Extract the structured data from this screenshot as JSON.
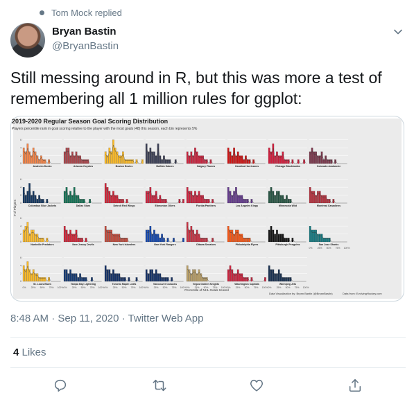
{
  "social_context": {
    "text": "Tom Mock replied"
  },
  "author": {
    "name": "Bryan Bastin",
    "handle": "@BryanBastin"
  },
  "tweet": {
    "text": "Still messing around in R, but this was more a test of remembering all 1 million rules for ggplot:"
  },
  "chart_data": {
    "type": "bar",
    "title": "2019-2020 Regular Season Goal Scoring Distribution",
    "subtitle": "Players percentile rank in goal scoring relative to the player with the most goals (48) this season, each bin represents 5%",
    "xlabel": "Percentile of NHL Goals Scored",
    "ylabel": "# of Players",
    "x_ticks": [
      "0%",
      "25%",
      "50%",
      "75%",
      "100%"
    ],
    "y_ticks": [
      "0",
      "2",
      "4",
      "6"
    ],
    "ylim": [
      0,
      7
    ],
    "caption_left": "Data Visualization by: Bryan Bastin (@BryanBastin)",
    "caption_right": "Data from: EvolvingHockey.com",
    "panels": [
      {
        "team": "Anaheim Ducks",
        "color": "#f47a38",
        "values": [
          4,
          3,
          5,
          3,
          2,
          4,
          3,
          2,
          1,
          2,
          1,
          1,
          0,
          1,
          0,
          0,
          0,
          0,
          0,
          0
        ]
      },
      {
        "team": "Arizona Coyotes",
        "color": "#a4343a",
        "values": [
          3,
          4,
          4,
          2,
          3,
          2,
          3,
          2,
          2,
          1,
          1,
          1,
          1,
          0,
          0,
          0,
          0,
          0,
          0,
          0
        ]
      },
      {
        "team": "Boston Bruins",
        "color": "#fcb514",
        "values": [
          3,
          2,
          4,
          3,
          6,
          4,
          3,
          2,
          2,
          3,
          1,
          1,
          1,
          1,
          1,
          0,
          1,
          0,
          0,
          1
        ]
      },
      {
        "team": "Buffalo Sabres",
        "color": "#2b2f48",
        "values": [
          5,
          3,
          4,
          3,
          3,
          2,
          5,
          2,
          1,
          2,
          1,
          1,
          1,
          0,
          0,
          1,
          0,
          0,
          0,
          0
        ]
      },
      {
        "team": "Calgary Flames",
        "color": "#c8102e",
        "values": [
          3,
          2,
          3,
          2,
          4,
          3,
          2,
          2,
          2,
          1,
          1,
          0,
          1,
          0,
          0,
          0,
          0,
          0,
          0,
          0
        ]
      },
      {
        "team": "Carolina Hurricanes",
        "color": "#cc0000",
        "values": [
          4,
          3,
          2,
          4,
          2,
          3,
          2,
          2,
          1,
          2,
          1,
          1,
          0,
          1,
          0,
          0,
          0,
          0,
          0,
          0
        ]
      },
      {
        "team": "Chicago Blackhawks",
        "color": "#cf0a2c",
        "values": [
          4,
          3,
          5,
          2,
          3,
          2,
          2,
          3,
          1,
          1,
          1,
          0,
          1,
          0,
          0,
          1,
          0,
          0,
          1,
          0
        ]
      },
      {
        "team": "Colorado Avalanche",
        "color": "#6f263d",
        "values": [
          3,
          4,
          3,
          3,
          2,
          2,
          3,
          1,
          2,
          1,
          1,
          1,
          0,
          1,
          0,
          0,
          0,
          0,
          0,
          0
        ]
      },
      {
        "team": "Columbus Blue Jackets",
        "color": "#002654",
        "values": [
          4,
          2,
          3,
          5,
          2,
          3,
          2,
          1,
          2,
          1,
          1,
          0,
          1,
          0,
          0,
          0,
          0,
          0,
          0,
          0
        ]
      },
      {
        "team": "Dallas Stars",
        "color": "#006847",
        "values": [
          3,
          4,
          2,
          3,
          2,
          4,
          2,
          2,
          1,
          1,
          1,
          0,
          0,
          1,
          0,
          0,
          0,
          0,
          0,
          0
        ]
      },
      {
        "team": "Detroit Red Wings",
        "color": "#ce1126",
        "values": [
          5,
          4,
          3,
          2,
          3,
          2,
          2,
          1,
          1,
          1,
          0,
          1,
          0,
          0,
          0,
          0,
          0,
          0,
          0,
          0
        ]
      },
      {
        "team": "Edmonton Oilers",
        "color": "#c8102e",
        "values": [
          3,
          3,
          4,
          2,
          2,
          3,
          1,
          2,
          1,
          1,
          1,
          0,
          0,
          0,
          0,
          0,
          0,
          1,
          0,
          1
        ]
      },
      {
        "team": "Florida Panthers",
        "color": "#c8102e",
        "values": [
          4,
          3,
          3,
          2,
          3,
          2,
          3,
          2,
          2,
          1,
          1,
          1,
          0,
          1,
          0,
          0,
          0,
          0,
          0,
          0
        ]
      },
      {
        "team": "Los Angeles Kings",
        "color": "#572a84",
        "values": [
          4,
          3,
          2,
          3,
          4,
          2,
          2,
          2,
          1,
          1,
          1,
          0,
          1,
          0,
          0,
          0,
          0,
          0,
          0,
          0
        ]
      },
      {
        "team": "Minnesota Wild",
        "color": "#154734",
        "values": [
          3,
          4,
          3,
          2,
          3,
          3,
          2,
          2,
          1,
          2,
          1,
          1,
          0,
          0,
          0,
          0,
          0,
          0,
          0,
          0
        ]
      },
      {
        "team": "Montreal Canadiens",
        "color": "#af1e2d",
        "values": [
          4,
          3,
          3,
          2,
          3,
          3,
          2,
          2,
          2,
          1,
          1,
          0,
          1,
          0,
          0,
          0,
          0,
          0,
          0,
          0
        ]
      },
      {
        "team": "Nashville Predators",
        "color": "#ffb81c",
        "values": [
          3,
          4,
          5,
          2,
          3,
          3,
          2,
          2,
          1,
          1,
          1,
          0,
          1,
          0,
          0,
          0,
          0,
          0,
          0,
          0
        ]
      },
      {
        "team": "New Jersey Devils",
        "color": "#ce1126",
        "values": [
          4,
          3,
          2,
          3,
          2,
          2,
          3,
          1,
          1,
          1,
          0,
          1,
          0,
          0,
          0,
          0,
          0,
          0,
          0,
          0
        ]
      },
      {
        "team": "New York Islanders",
        "color": "#bf3a2b",
        "values": [
          4,
          3,
          3,
          3,
          2,
          2,
          2,
          2,
          1,
          1,
          1,
          1,
          0,
          0,
          0,
          0,
          0,
          0,
          0,
          0
        ]
      },
      {
        "team": "New York Rangers",
        "color": "#0038a8",
        "values": [
          3,
          3,
          4,
          2,
          3,
          2,
          2,
          1,
          2,
          1,
          0,
          1,
          0,
          0,
          1,
          0,
          0,
          0,
          0,
          1
        ]
      },
      {
        "team": "Ottawa Senators",
        "color": "#c52032",
        "values": [
          5,
          3,
          4,
          3,
          2,
          3,
          2,
          1,
          1,
          1,
          1,
          0,
          0,
          1,
          0,
          0,
          0,
          0,
          0,
          0
        ]
      },
      {
        "team": "Philadelphia Flyers",
        "color": "#f74902",
        "values": [
          4,
          3,
          3,
          2,
          3,
          3,
          2,
          2,
          1,
          1,
          1,
          1,
          0,
          0,
          0,
          0,
          0,
          0,
          0,
          0
        ]
      },
      {
        "team": "Pittsburgh Penguins",
        "color": "#000000",
        "values": [
          3,
          4,
          3,
          2,
          3,
          2,
          2,
          2,
          1,
          1,
          1,
          0,
          1,
          0,
          0,
          0,
          0,
          0,
          0,
          0
        ]
      },
      {
        "team": "San Jose Sharks",
        "color": "#006d75",
        "values": [
          4,
          3,
          3,
          3,
          2,
          2,
          2,
          1,
          1,
          1,
          1,
          0,
          0,
          0,
          0,
          0,
          0,
          0,
          0,
          0
        ]
      },
      {
        "team": "St. Louis Blues",
        "color": "#fcb514",
        "values": [
          4,
          3,
          5,
          3,
          2,
          3,
          2,
          2,
          1,
          1,
          1,
          1,
          0,
          1,
          0,
          0,
          0,
          0,
          0,
          0
        ]
      },
      {
        "team": "Tampa Bay Lightning",
        "color": "#002868",
        "values": [
          3,
          3,
          2,
          3,
          2,
          2,
          2,
          1,
          2,
          1,
          1,
          1,
          0,
          0,
          1,
          0,
          0,
          0,
          0,
          0
        ]
      },
      {
        "team": "Toronto Maple Leafs",
        "color": "#00205b",
        "values": [
          4,
          3,
          3,
          2,
          3,
          2,
          2,
          2,
          1,
          1,
          1,
          0,
          1,
          0,
          0,
          0,
          1,
          0,
          0,
          0
        ]
      },
      {
        "team": "Vancouver Canucks",
        "color": "#00205b",
        "values": [
          3,
          2,
          3,
          3,
          2,
          3,
          2,
          2,
          1,
          1,
          1,
          1,
          0,
          1,
          0,
          0,
          0,
          0,
          0,
          0
        ]
      },
      {
        "team": "Vegas Golden Knights",
        "color": "#b4975a",
        "values": [
          4,
          3,
          2,
          3,
          3,
          2,
          3,
          2,
          1,
          1,
          1,
          0,
          0,
          0,
          0,
          0,
          0,
          0,
          0,
          0
        ]
      },
      {
        "team": "Washington Capitals",
        "color": "#c8102e",
        "values": [
          3,
          4,
          3,
          2,
          2,
          3,
          2,
          2,
          1,
          1,
          1,
          0,
          1,
          0,
          0,
          0,
          0,
          0,
          0,
          1
        ]
      },
      {
        "team": "Winnipeg Jets",
        "color": "#041e42",
        "values": [
          4,
          3,
          3,
          2,
          2,
          3,
          2,
          1,
          1,
          1,
          1,
          1,
          0,
          0,
          0,
          0,
          0,
          0,
          0,
          0
        ]
      }
    ]
  },
  "meta": {
    "timestamp": "8:48 AM · Sep 11, 2020 · Twitter Web App"
  },
  "likes": {
    "count": "4",
    "label": " Likes"
  },
  "icons": {
    "reply": "reply-icon",
    "retweet": "retweet-icon",
    "like": "heart-icon",
    "share": "share-icon",
    "menu": "chevron-down-icon"
  },
  "colors": {
    "secondary": "#657786",
    "text": "#14171a",
    "border": "#e6ecf0"
  }
}
